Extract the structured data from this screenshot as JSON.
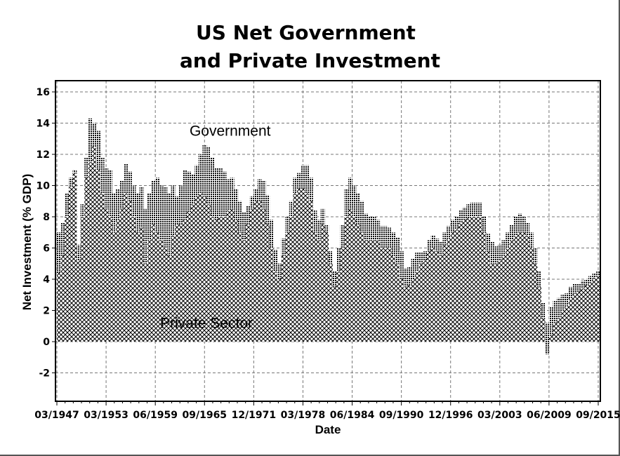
{
  "chart_data": {
    "type": "area",
    "title": "US Net Government and Private Investment",
    "title_lines": [
      "US Net Government",
      "and Private Investment"
    ],
    "xlabel": "Date",
    "ylabel": "Net Investment (% GDP)",
    "ylim": [
      -3.8,
      16.6
    ],
    "xlim": [
      1947.0,
      2015.6
    ],
    "grid": true,
    "legend": "none",
    "y_ticks": [
      -2,
      0,
      2,
      4,
      6,
      8,
      10,
      12,
      14,
      16
    ],
    "x_ticks": [
      {
        "value": 1947.0,
        "label": "03/1947"
      },
      {
        "value": 1953.25,
        "label": "03/1953"
      },
      {
        "value": 1959.5,
        "label": "06/1959"
      },
      {
        "value": 1965.75,
        "label": "09/1965"
      },
      {
        "value": 1972.0,
        "label": "12/1971"
      },
      {
        "value": 1978.25,
        "label": "03/1978"
      },
      {
        "value": 1984.5,
        "label": "06/1984"
      },
      {
        "value": 1990.75,
        "label": "09/1990"
      },
      {
        "value": 1997.0,
        "label": "12/1996"
      },
      {
        "value": 2003.25,
        "label": "03/2003"
      },
      {
        "value": 2009.5,
        "label": "06/2009"
      },
      {
        "value": 2015.75,
        "label": "09/2015"
      }
    ],
    "annotations": [
      {
        "text": "Government",
        "x": 1969.0,
        "y": 13.5
      },
      {
        "text": "Private Sector",
        "x": 1966.0,
        "y": 1.2
      }
    ],
    "x": [
      1947.0,
      1947.5,
      1948.0,
      1948.5,
      1949.0,
      1949.5,
      1950.0,
      1950.5,
      1951.0,
      1951.5,
      1952.0,
      1952.5,
      1953.0,
      1953.5,
      1954.0,
      1954.5,
      1955.0,
      1955.5,
      1956.0,
      1956.5,
      1957.0,
      1957.5,
      1958.0,
      1958.5,
      1959.0,
      1959.5,
      1960.0,
      1960.5,
      1961.0,
      1961.5,
      1962.0,
      1962.5,
      1963.0,
      1963.5,
      1964.0,
      1964.5,
      1965.0,
      1965.5,
      1966.0,
      1966.5,
      1967.0,
      1967.5,
      1968.0,
      1968.5,
      1969.0,
      1969.5,
      1970.0,
      1970.5,
      1971.0,
      1971.5,
      1972.0,
      1972.5,
      1973.0,
      1973.5,
      1974.0,
      1974.5,
      1975.0,
      1975.5,
      1976.0,
      1976.5,
      1977.0,
      1977.5,
      1978.0,
      1978.5,
      1979.0,
      1979.5,
      1980.0,
      1980.5,
      1981.0,
      1981.5,
      1982.0,
      1982.5,
      1983.0,
      1983.5,
      1984.0,
      1984.5,
      1985.0,
      1985.5,
      1986.0,
      1986.5,
      1987.0,
      1987.5,
      1988.0,
      1988.5,
      1989.0,
      1989.5,
      1990.0,
      1990.5,
      1991.0,
      1991.5,
      1992.0,
      1992.5,
      1993.0,
      1993.5,
      1994.0,
      1994.5,
      1995.0,
      1995.5,
      1996.0,
      1996.5,
      1997.0,
      1997.5,
      1998.0,
      1998.5,
      1999.0,
      1999.5,
      2000.0,
      2000.5,
      2001.0,
      2001.5,
      2002.0,
      2002.5,
      2003.0,
      2003.5,
      2004.0,
      2004.5,
      2005.0,
      2005.5,
      2006.0,
      2006.5,
      2007.0,
      2007.5,
      2008.0,
      2008.5,
      2009.0,
      2009.5,
      2010.0,
      2010.5,
      2011.0,
      2011.5,
      2012.0,
      2012.5,
      2013.0,
      2013.5,
      2014.0,
      2014.5,
      2015.0,
      2015.5
    ],
    "series": [
      {
        "name": "Private Sector",
        "values": [
          7.0,
          7.6,
          9.5,
          10.5,
          11.0,
          5.2,
          8.0,
          10.5,
          11.5,
          12.5,
          11.0,
          9.5,
          8.5,
          8.0,
          7.0,
          7.8,
          8.5,
          9.5,
          9.0,
          8.0,
          7.0,
          7.3,
          5.0,
          6.5,
          7.5,
          7.0,
          6.5,
          6.0,
          5.5,
          6.8,
          7.5,
          7.5,
          7.8,
          8.3,
          8.8,
          9.3,
          9.5,
          9.3,
          8.8,
          8.0,
          7.8,
          8.0,
          8.0,
          8.4,
          8.5,
          7.8,
          7.0,
          6.5,
          7.5,
          8.5,
          9.0,
          9.0,
          8.5,
          7.5,
          6.0,
          4.5,
          4.0,
          5.5,
          7.0,
          8.0,
          9.5,
          9.8,
          9.8,
          9.5,
          9.0,
          7.0,
          6.5,
          7.5,
          7.0,
          5.0,
          3.5,
          4.5,
          6.0,
          8.0,
          8.5,
          8.0,
          7.5,
          7.0,
          6.5,
          6.5,
          6.5,
          6.5,
          6.0,
          6.0,
          6.0,
          5.5,
          5.0,
          4.0,
          3.5,
          3.6,
          4.0,
          4.5,
          5.0,
          5.2,
          5.8,
          6.0,
          5.8,
          5.5,
          6.2,
          6.6,
          7.0,
          7.2,
          7.6,
          7.8,
          7.9,
          8.0,
          8.0,
          8.0,
          7.0,
          5.8,
          5.0,
          5.0,
          5.2,
          5.5,
          6.0,
          6.5,
          6.8,
          7.0,
          7.0,
          6.8,
          6.0,
          5.0,
          3.5,
          1.5,
          -0.8,
          0.4,
          1.2,
          1.5,
          2.0,
          2.3,
          2.8,
          3.1,
          3.2,
          3.4,
          3.6,
          3.8,
          4.1,
          4.2
        ]
      },
      {
        "name": "Government",
        "values": [
          -2.6,
          -2.1,
          -1.5,
          -0.6,
          -0.2,
          1.0,
          0.8,
          1.3,
          2.8,
          1.5,
          2.5,
          2.3,
          2.6,
          3.0,
          2.5,
          2.0,
          1.8,
          1.9,
          1.9,
          2.0,
          2.5,
          2.6,
          3.5,
          3.0,
          2.8,
          3.5,
          3.5,
          3.9,
          4.0,
          3.2,
          1.8,
          2.5,
          3.2,
          2.6,
          1.9,
          2.0,
          2.5,
          3.3,
          3.7,
          3.8,
          3.3,
          3.1,
          2.9,
          2.0,
          2.0,
          2.0,
          2.0,
          1.8,
          1.2,
          0.8,
          0.8,
          1.4,
          1.8,
          1.9,
          1.8,
          1.4,
          1.0,
          1.1,
          1.0,
          1.0,
          1.0,
          1.0,
          1.5,
          1.8,
          1.5,
          1.4,
          1.3,
          1.0,
          0.5,
          0.8,
          1.0,
          1.5,
          1.5,
          1.8,
          2.0,
          2.0,
          2.0,
          2.0,
          1.7,
          1.5,
          1.5,
          1.3,
          1.4,
          1.4,
          1.3,
          1.5,
          1.7,
          1.8,
          1.2,
          1.2,
          1.3,
          1.2,
          0.7,
          0.6,
          0.7,
          0.8,
          0.8,
          0.9,
          0.8,
          0.8,
          0.8,
          0.8,
          0.8,
          0.8,
          0.9,
          0.9,
          0.9,
          0.9,
          1.0,
          1.1,
          1.4,
          1.1,
          1.0,
          1.0,
          1.0,
          1.0,
          1.2,
          1.2,
          1.0,
          0.8,
          1.0,
          1.0,
          1.0,
          1.0,
          2.0,
          1.8,
          1.4,
          1.3,
          1.0,
          0.8,
          0.7,
          0.6,
          0.5,
          0.5,
          0.4,
          0.4,
          0.3,
          0.3
        ]
      }
    ]
  }
}
